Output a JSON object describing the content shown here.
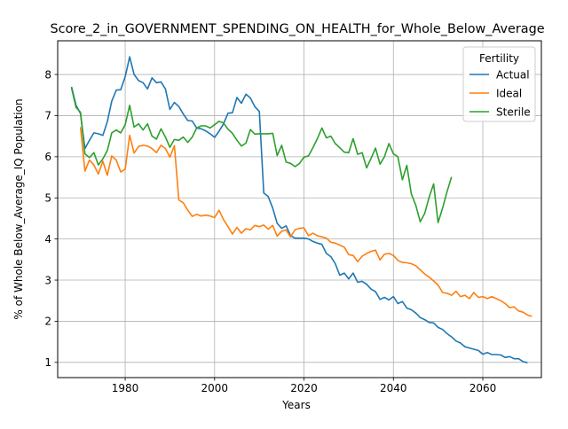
{
  "chart_data": {
    "type": "line",
    "title": "Score_2_in_GOVERNMENT_SPENDING_ON_HEALTH_for_Whole_Below_Average",
    "xlabel": "Years",
    "ylabel": "% of Whole Below_Average_IQ Population",
    "xlim": [
      1964.9,
      2073.1
    ],
    "ylim": [
      0.63,
      8.82
    ],
    "xticks": [
      1980,
      2000,
      2020,
      2040,
      2060
    ],
    "yticks": [
      1,
      2,
      3,
      4,
      5,
      6,
      7,
      8
    ],
    "grid": true,
    "legend": {
      "title": "Fertility",
      "placement": "top-right"
    },
    "series": [
      {
        "name": "Actual",
        "color": "#1f77b4",
        "points": [
          [
            1968,
            7.7
          ],
          [
            1969,
            7.25
          ],
          [
            1970,
            7.05
          ],
          [
            1971,
            6.2
          ],
          [
            1972,
            6.4
          ],
          [
            1973,
            6.58
          ],
          [
            1974,
            6.56
          ],
          [
            1975,
            6.52
          ],
          [
            1976,
            6.85
          ],
          [
            1977,
            7.35
          ],
          [
            1978,
            7.62
          ],
          [
            1979,
            7.63
          ],
          [
            1980,
            7.95
          ],
          [
            1981,
            8.43
          ],
          [
            1982,
            8.0
          ],
          [
            1983,
            7.85
          ],
          [
            1984,
            7.8
          ],
          [
            1985,
            7.65
          ],
          [
            1986,
            7.92
          ],
          [
            1987,
            7.8
          ],
          [
            1988,
            7.82
          ],
          [
            1989,
            7.65
          ],
          [
            1990,
            7.15
          ],
          [
            1991,
            7.32
          ],
          [
            1992,
            7.22
          ],
          [
            1993,
            7.04
          ],
          [
            1994,
            6.88
          ],
          [
            1995,
            6.87
          ],
          [
            1996,
            6.7
          ],
          [
            1997,
            6.68
          ],
          [
            1998,
            6.63
          ],
          [
            1999,
            6.56
          ],
          [
            2000,
            6.47
          ],
          [
            2001,
            6.62
          ],
          [
            2002,
            6.8
          ],
          [
            2003,
            7.06
          ],
          [
            2004,
            7.07
          ],
          [
            2005,
            7.44
          ],
          [
            2006,
            7.3
          ],
          [
            2007,
            7.52
          ],
          [
            2008,
            7.43
          ],
          [
            2009,
            7.22
          ],
          [
            2010,
            7.1
          ],
          [
            2011,
            5.12
          ],
          [
            2012,
            5.03
          ],
          [
            2013,
            4.75
          ],
          [
            2014,
            4.38
          ],
          [
            2015,
            4.26
          ],
          [
            2016,
            4.32
          ],
          [
            2017,
            4.08
          ],
          [
            2018,
            4.02
          ],
          [
            2019,
            4.02
          ],
          [
            2020,
            4.02
          ],
          [
            2021,
            4.0
          ],
          [
            2022,
            3.94
          ],
          [
            2023,
            3.9
          ],
          [
            2024,
            3.87
          ],
          [
            2025,
            3.65
          ],
          [
            2026,
            3.57
          ],
          [
            2027,
            3.4
          ],
          [
            2028,
            3.12
          ],
          [
            2029,
            3.17
          ],
          [
            2030,
            3.03
          ],
          [
            2031,
            3.17
          ],
          [
            2032,
            2.95
          ],
          [
            2033,
            2.97
          ],
          [
            2034,
            2.9
          ],
          [
            2035,
            2.78
          ],
          [
            2036,
            2.72
          ],
          [
            2037,
            2.53
          ],
          [
            2038,
            2.58
          ],
          [
            2039,
            2.52
          ],
          [
            2040,
            2.6
          ],
          [
            2041,
            2.43
          ],
          [
            2042,
            2.48
          ],
          [
            2043,
            2.32
          ],
          [
            2044,
            2.28
          ],
          [
            2045,
            2.2
          ],
          [
            2046,
            2.09
          ],
          [
            2047,
            2.04
          ],
          [
            2048,
            1.97
          ],
          [
            2049,
            1.96
          ],
          [
            2050,
            1.85
          ],
          [
            2051,
            1.8
          ],
          [
            2052,
            1.7
          ],
          [
            2053,
            1.62
          ],
          [
            2054,
            1.52
          ],
          [
            2055,
            1.47
          ],
          [
            2056,
            1.38
          ],
          [
            2057,
            1.35
          ],
          [
            2058,
            1.32
          ],
          [
            2059,
            1.29
          ],
          [
            2060,
            1.2
          ],
          [
            2061,
            1.24
          ],
          [
            2062,
            1.19
          ],
          [
            2063,
            1.19
          ],
          [
            2064,
            1.18
          ],
          [
            2065,
            1.12
          ],
          [
            2066,
            1.14
          ],
          [
            2067,
            1.09
          ],
          [
            2068,
            1.09
          ],
          [
            2069,
            1.02
          ],
          [
            2070,
            0.99
          ]
        ]
      },
      {
        "name": "Ideal",
        "color": "#ff7f0e",
        "points": [
          [
            1970,
            6.72
          ],
          [
            1971,
            5.65
          ],
          [
            1972,
            5.92
          ],
          [
            1973,
            5.8
          ],
          [
            1974,
            5.58
          ],
          [
            1975,
            5.89
          ],
          [
            1976,
            5.55
          ],
          [
            1977,
            6.02
          ],
          [
            1978,
            5.92
          ],
          [
            1979,
            5.63
          ],
          [
            1980,
            5.7
          ],
          [
            1981,
            6.52
          ],
          [
            1982,
            6.09
          ],
          [
            1983,
            6.25
          ],
          [
            1984,
            6.28
          ],
          [
            1985,
            6.26
          ],
          [
            1986,
            6.2
          ],
          [
            1987,
            6.1
          ],
          [
            1988,
            6.28
          ],
          [
            1989,
            6.2
          ],
          [
            1990,
            5.99
          ],
          [
            1991,
            6.27
          ],
          [
            1992,
            4.95
          ],
          [
            1993,
            4.88
          ],
          [
            1994,
            4.7
          ],
          [
            1995,
            4.55
          ],
          [
            1996,
            4.6
          ],
          [
            1997,
            4.56
          ],
          [
            1998,
            4.58
          ],
          [
            1999,
            4.56
          ],
          [
            2000,
            4.52
          ],
          [
            2001,
            4.7
          ],
          [
            2002,
            4.47
          ],
          [
            2003,
            4.3
          ],
          [
            2004,
            4.12
          ],
          [
            2005,
            4.28
          ],
          [
            2006,
            4.14
          ],
          [
            2007,
            4.25
          ],
          [
            2008,
            4.22
          ],
          [
            2009,
            4.33
          ],
          [
            2010,
            4.3
          ],
          [
            2011,
            4.34
          ],
          [
            2012,
            4.24
          ],
          [
            2013,
            4.33
          ],
          [
            2014,
            4.07
          ],
          [
            2015,
            4.19
          ],
          [
            2016,
            4.22
          ],
          [
            2017,
            4.05
          ],
          [
            2018,
            4.23
          ],
          [
            2019,
            4.26
          ],
          [
            2020,
            4.27
          ],
          [
            2021,
            4.08
          ],
          [
            2022,
            4.14
          ],
          [
            2023,
            4.08
          ],
          [
            2024,
            4.05
          ],
          [
            2025,
            4.02
          ],
          [
            2026,
            3.92
          ],
          [
            2027,
            3.9
          ],
          [
            2028,
            3.85
          ],
          [
            2029,
            3.8
          ],
          [
            2030,
            3.62
          ],
          [
            2031,
            3.6
          ],
          [
            2032,
            3.45
          ],
          [
            2033,
            3.58
          ],
          [
            2034,
            3.65
          ],
          [
            2035,
            3.7
          ],
          [
            2036,
            3.73
          ],
          [
            2037,
            3.49
          ],
          [
            2038,
            3.63
          ],
          [
            2039,
            3.65
          ],
          [
            2040,
            3.6
          ],
          [
            2041,
            3.48
          ],
          [
            2042,
            3.43
          ],
          [
            2043,
            3.42
          ],
          [
            2044,
            3.4
          ],
          [
            2045,
            3.35
          ],
          [
            2046,
            3.25
          ],
          [
            2047,
            3.15
          ],
          [
            2048,
            3.07
          ],
          [
            2049,
            2.98
          ],
          [
            2050,
            2.88
          ],
          [
            2051,
            2.7
          ],
          [
            2052,
            2.68
          ],
          [
            2053,
            2.63
          ],
          [
            2054,
            2.73
          ],
          [
            2055,
            2.6
          ],
          [
            2056,
            2.63
          ],
          [
            2057,
            2.55
          ],
          [
            2058,
            2.7
          ],
          [
            2059,
            2.58
          ],
          [
            2060,
            2.6
          ],
          [
            2061,
            2.55
          ],
          [
            2062,
            2.6
          ],
          [
            2063,
            2.55
          ],
          [
            2064,
            2.5
          ],
          [
            2065,
            2.43
          ],
          [
            2066,
            2.33
          ],
          [
            2067,
            2.35
          ],
          [
            2068,
            2.25
          ],
          [
            2069,
            2.22
          ],
          [
            2070,
            2.15
          ],
          [
            2071,
            2.12
          ]
        ]
      },
      {
        "name": "Sterile",
        "color": "#2ca02c",
        "points": [
          [
            1968,
            7.67
          ],
          [
            1969,
            7.2
          ],
          [
            1970,
            7.08
          ],
          [
            1971,
            6.07
          ],
          [
            1972,
            5.98
          ],
          [
            1973,
            6.1
          ],
          [
            1974,
            5.8
          ],
          [
            1975,
            5.95
          ],
          [
            1976,
            6.15
          ],
          [
            1977,
            6.58
          ],
          [
            1978,
            6.65
          ],
          [
            1979,
            6.58
          ],
          [
            1980,
            6.78
          ],
          [
            1981,
            7.25
          ],
          [
            1982,
            6.72
          ],
          [
            1983,
            6.8
          ],
          [
            1984,
            6.65
          ],
          [
            1985,
            6.8
          ],
          [
            1986,
            6.5
          ],
          [
            1987,
            6.43
          ],
          [
            1988,
            6.68
          ],
          [
            1989,
            6.48
          ],
          [
            1990,
            6.23
          ],
          [
            1991,
            6.42
          ],
          [
            1992,
            6.4
          ],
          [
            1993,
            6.48
          ],
          [
            1994,
            6.35
          ],
          [
            1995,
            6.48
          ],
          [
            1996,
            6.7
          ],
          [
            1997,
            6.75
          ],
          [
            1998,
            6.75
          ],
          [
            1999,
            6.7
          ],
          [
            2000,
            6.78
          ],
          [
            2001,
            6.86
          ],
          [
            2002,
            6.82
          ],
          [
            2003,
            6.67
          ],
          [
            2004,
            6.57
          ],
          [
            2005,
            6.4
          ],
          [
            2006,
            6.26
          ],
          [
            2007,
            6.33
          ],
          [
            2008,
            6.66
          ],
          [
            2009,
            6.55
          ],
          [
            2010,
            6.56
          ],
          [
            2011,
            6.56
          ],
          [
            2012,
            6.56
          ],
          [
            2013,
            6.57
          ],
          [
            2014,
            6.03
          ],
          [
            2015,
            6.28
          ],
          [
            2016,
            5.87
          ],
          [
            2017,
            5.84
          ],
          [
            2018,
            5.76
          ],
          [
            2019,
            5.84
          ],
          [
            2020,
            5.99
          ],
          [
            2021,
            6.02
          ],
          [
            2022,
            6.22
          ],
          [
            2023,
            6.44
          ],
          [
            2024,
            6.7
          ],
          [
            2025,
            6.46
          ],
          [
            2026,
            6.5
          ],
          [
            2027,
            6.32
          ],
          [
            2028,
            6.22
          ],
          [
            2029,
            6.11
          ],
          [
            2030,
            6.1
          ],
          [
            2031,
            6.44
          ],
          [
            2032,
            6.06
          ],
          [
            2033,
            6.1
          ],
          [
            2034,
            5.73
          ],
          [
            2035,
            5.96
          ],
          [
            2036,
            6.21
          ],
          [
            2037,
            5.82
          ],
          [
            2038,
            6.0
          ],
          [
            2039,
            6.32
          ],
          [
            2040,
            6.07
          ],
          [
            2041,
            6.0
          ],
          [
            2042,
            5.44
          ],
          [
            2043,
            5.79
          ],
          [
            2044,
            5.1
          ],
          [
            2045,
            4.82
          ],
          [
            2046,
            4.42
          ],
          [
            2047,
            4.62
          ],
          [
            2048,
            5.02
          ],
          [
            2049,
            5.34
          ],
          [
            2050,
            4.4
          ],
          [
            2051,
            4.75
          ],
          [
            2052,
            5.15
          ],
          [
            2053,
            5.51
          ]
        ]
      }
    ]
  }
}
